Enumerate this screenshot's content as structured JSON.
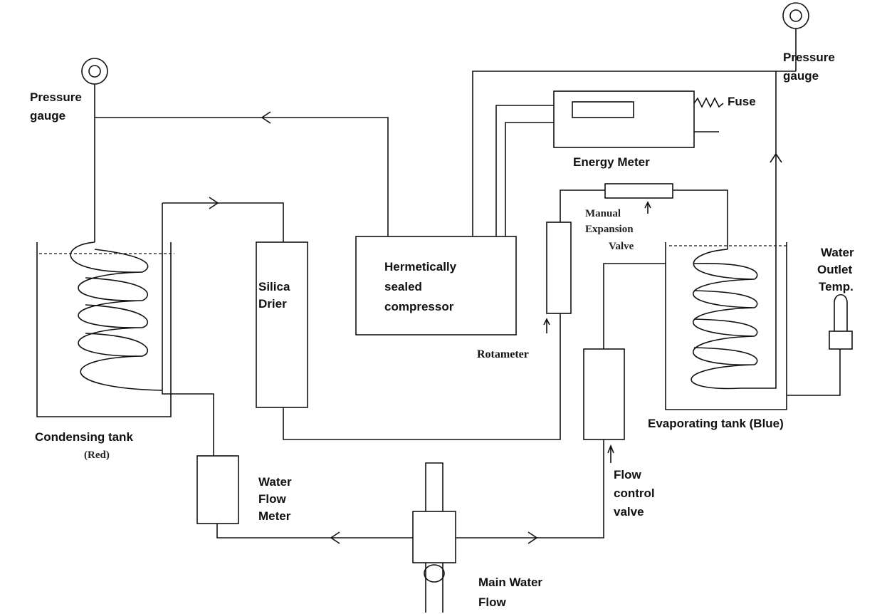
{
  "labels": {
    "left_gauge": [
      "Pressure",
      "gauge"
    ],
    "right_gauge": [
      "Pressure",
      "gauge"
    ],
    "fuse": "Fuse",
    "energy_meter": "Energy Meter",
    "expansion_valve": [
      "Manual",
      "Expansion",
      "Valve"
    ],
    "outlet_temp": [
      "Water",
      "Outlet",
      "Temp."
    ],
    "compressor": [
      "Hermetically",
      "sealed",
      "compressor"
    ],
    "drier": [
      "Silica",
      "Drier"
    ],
    "rotameter": "Rotameter",
    "condensing_tank": "Condensing tank",
    "condensing_color": "(Red)",
    "evaporating_tank": "Evaporating tank (Blue)",
    "water_flow_meter": [
      "Water",
      "Flow",
      "Meter"
    ],
    "flow_control_valve": [
      "Flow",
      "control",
      "valve"
    ],
    "main_water_flow": [
      "Main Water",
      "Flow"
    ]
  }
}
